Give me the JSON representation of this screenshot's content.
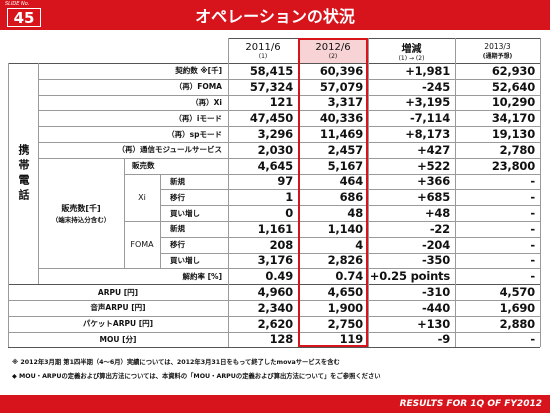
{
  "header": {
    "slide_label": "SLIDE No.",
    "slide_number": "45",
    "title": "オペレーションの状況"
  },
  "table": {
    "columns": [
      {
        "label": "2011/6",
        "sub": "(1)"
      },
      {
        "label": "2012/6",
        "sub": "(2)"
      },
      {
        "label": "増減",
        "sub": "(1) → (2)"
      },
      {
        "label": "2013/3",
        "sub": "(通期予想)"
      }
    ],
    "section_label": "携帯電話",
    "subscriber_rows": [
      {
        "label": "契約数 ※[千]",
        "values": [
          "58,415",
          "60,396",
          "+1,981",
          "62,930"
        ]
      },
      {
        "label": "（再）FOMA",
        "values": [
          "57,324",
          "57,079",
          "-245",
          "52,640"
        ]
      },
      {
        "label": "（再）Xi",
        "values": [
          "121",
          "3,317",
          "+3,195",
          "10,290"
        ]
      },
      {
        "label": "（再）iモード",
        "values": [
          "47,450",
          "40,336",
          "-7,114",
          "34,170"
        ]
      },
      {
        "label": "（再）spモード",
        "values": [
          "3,296",
          "11,469",
          "+8,173",
          "19,130"
        ]
      },
      {
        "label": "（再）通信モジュールサービス",
        "values": [
          "2,030",
          "2,457",
          "+427",
          "2,780"
        ]
      }
    ],
    "sales_row": {
      "label": "販売数",
      "values": [
        "4,645",
        "5,167",
        "+522",
        "23,800"
      ]
    },
    "sales_breakdown": {
      "label": "販売数[千]",
      "note": "（端末持込分含む）",
      "groups": [
        {
          "name": "Xi",
          "rows": [
            {
              "label": "新規",
              "values": [
                "97",
                "464",
                "+366",
                "-"
              ]
            },
            {
              "label": "移行",
              "values": [
                "1",
                "686",
                "+685",
                "-"
              ]
            },
            {
              "label": "買い増し",
              "values": [
                "0",
                "48",
                "+48",
                "-"
              ]
            }
          ]
        },
        {
          "name": "FOMA",
          "rows": [
            {
              "label": "新規",
              "values": [
                "1,161",
                "1,140",
                "-22",
                "-"
              ]
            },
            {
              "label": "移行",
              "values": [
                "208",
                "4",
                "-204",
                "-"
              ]
            },
            {
              "label": "買い増し",
              "values": [
                "3,176",
                "2,826",
                "-350",
                "-"
              ]
            }
          ]
        }
      ]
    },
    "churn_row": {
      "label": "解約率 [%]",
      "values": [
        "0.49",
        "0.74",
        "+0.25 points",
        "-"
      ]
    },
    "arpu_rows": [
      {
        "label": "ARPU [円]",
        "values": [
          "4,960",
          "4,650",
          "-310",
          "4,570"
        ]
      },
      {
        "label": "音声ARPU [円]",
        "values": [
          "2,340",
          "1,900",
          "-440",
          "1,690"
        ]
      },
      {
        "label": "パケットARPU [円]",
        "values": [
          "2,620",
          "2,750",
          "+130",
          "2,880"
        ]
      },
      {
        "label": "MOU [分]",
        "values": [
          "128",
          "119",
          "-9",
          "-"
        ]
      }
    ]
  },
  "footnotes": [
    "※ 2012年3月期 第1四半期（4～6月）実績については、2012年3月31日をもって終了したmovaサービスを含む",
    "◆ MOU・ARPUの定義および算出方法については、本資料の「MOU・ARPUの定義および算出方法について」をご参照ください"
  ],
  "footer": "RESULTS FOR 1Q OF FY2012"
}
